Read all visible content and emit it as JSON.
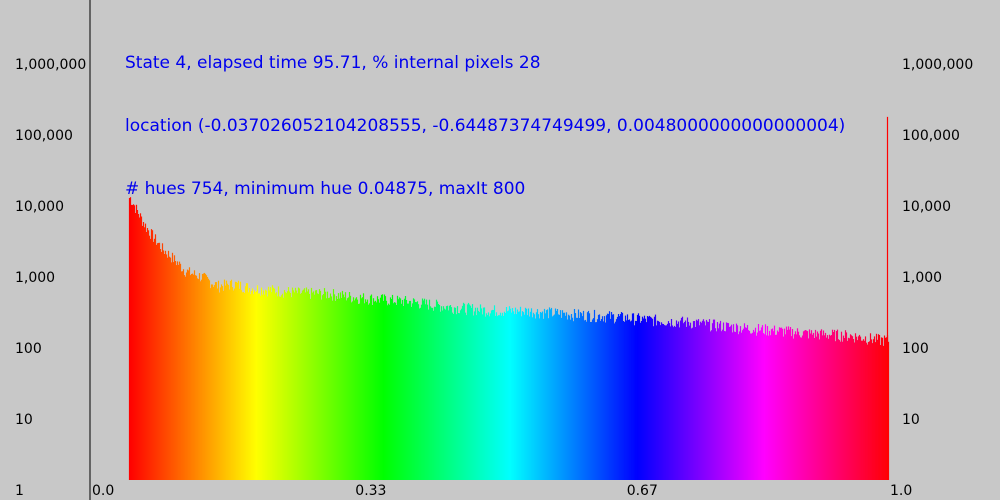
{
  "header": {
    "line1": "State 4, elapsed time 95.71, % internal pixels 28",
    "line2": "location (-0.037026052104208555, -0.64487374749499, 0.0048000000000000004)",
    "line3": "# hues 754, minimum hue 0.04875, maxIt 800"
  },
  "chart_data": {
    "type": "bar",
    "title": "",
    "xlabel": "",
    "ylabel": "",
    "y_scale": "log",
    "xlim": [
      0.0,
      1.0
    ],
    "ylim": [
      1,
      10000000
    ],
    "x_ticks": [
      "0.0",
      "0.33",
      "0.67",
      "1.0"
    ],
    "y_ticks_left": [
      "1",
      "10",
      "100",
      "1,000",
      "10,000",
      "100,000",
      "1,000,000"
    ],
    "y_ticks_right": [
      "10",
      "100",
      "1,000",
      "10,000",
      "100,000",
      "1,000,000"
    ],
    "hue_range": [
      0.04875,
      0.99
    ],
    "series": [
      {
        "x": [
          0.05,
          0.06,
          0.07,
          0.09,
          0.1,
          0.12,
          0.14,
          0.16,
          0.18,
          0.2,
          0.23,
          0.26,
          0.3,
          0.33,
          0.37,
          0.4,
          0.45,
          0.5,
          0.55,
          0.6,
          0.65,
          0.7,
          0.75,
          0.8,
          0.85,
          0.9,
          0.95,
          0.99
        ],
        "values": [
          13000,
          8000,
          5000,
          2500,
          2000,
          1200,
          1000,
          750,
          800,
          700,
          650,
          600,
          580,
          520,
          480,
          450,
          380,
          340,
          330,
          300,
          280,
          250,
          230,
          200,
          180,
          160,
          150,
          130
        ]
      }
    ],
    "spike": {
      "x": 1.0,
      "value": 180000,
      "color": "#ff0000"
    },
    "grid": false,
    "legend": "none"
  }
}
